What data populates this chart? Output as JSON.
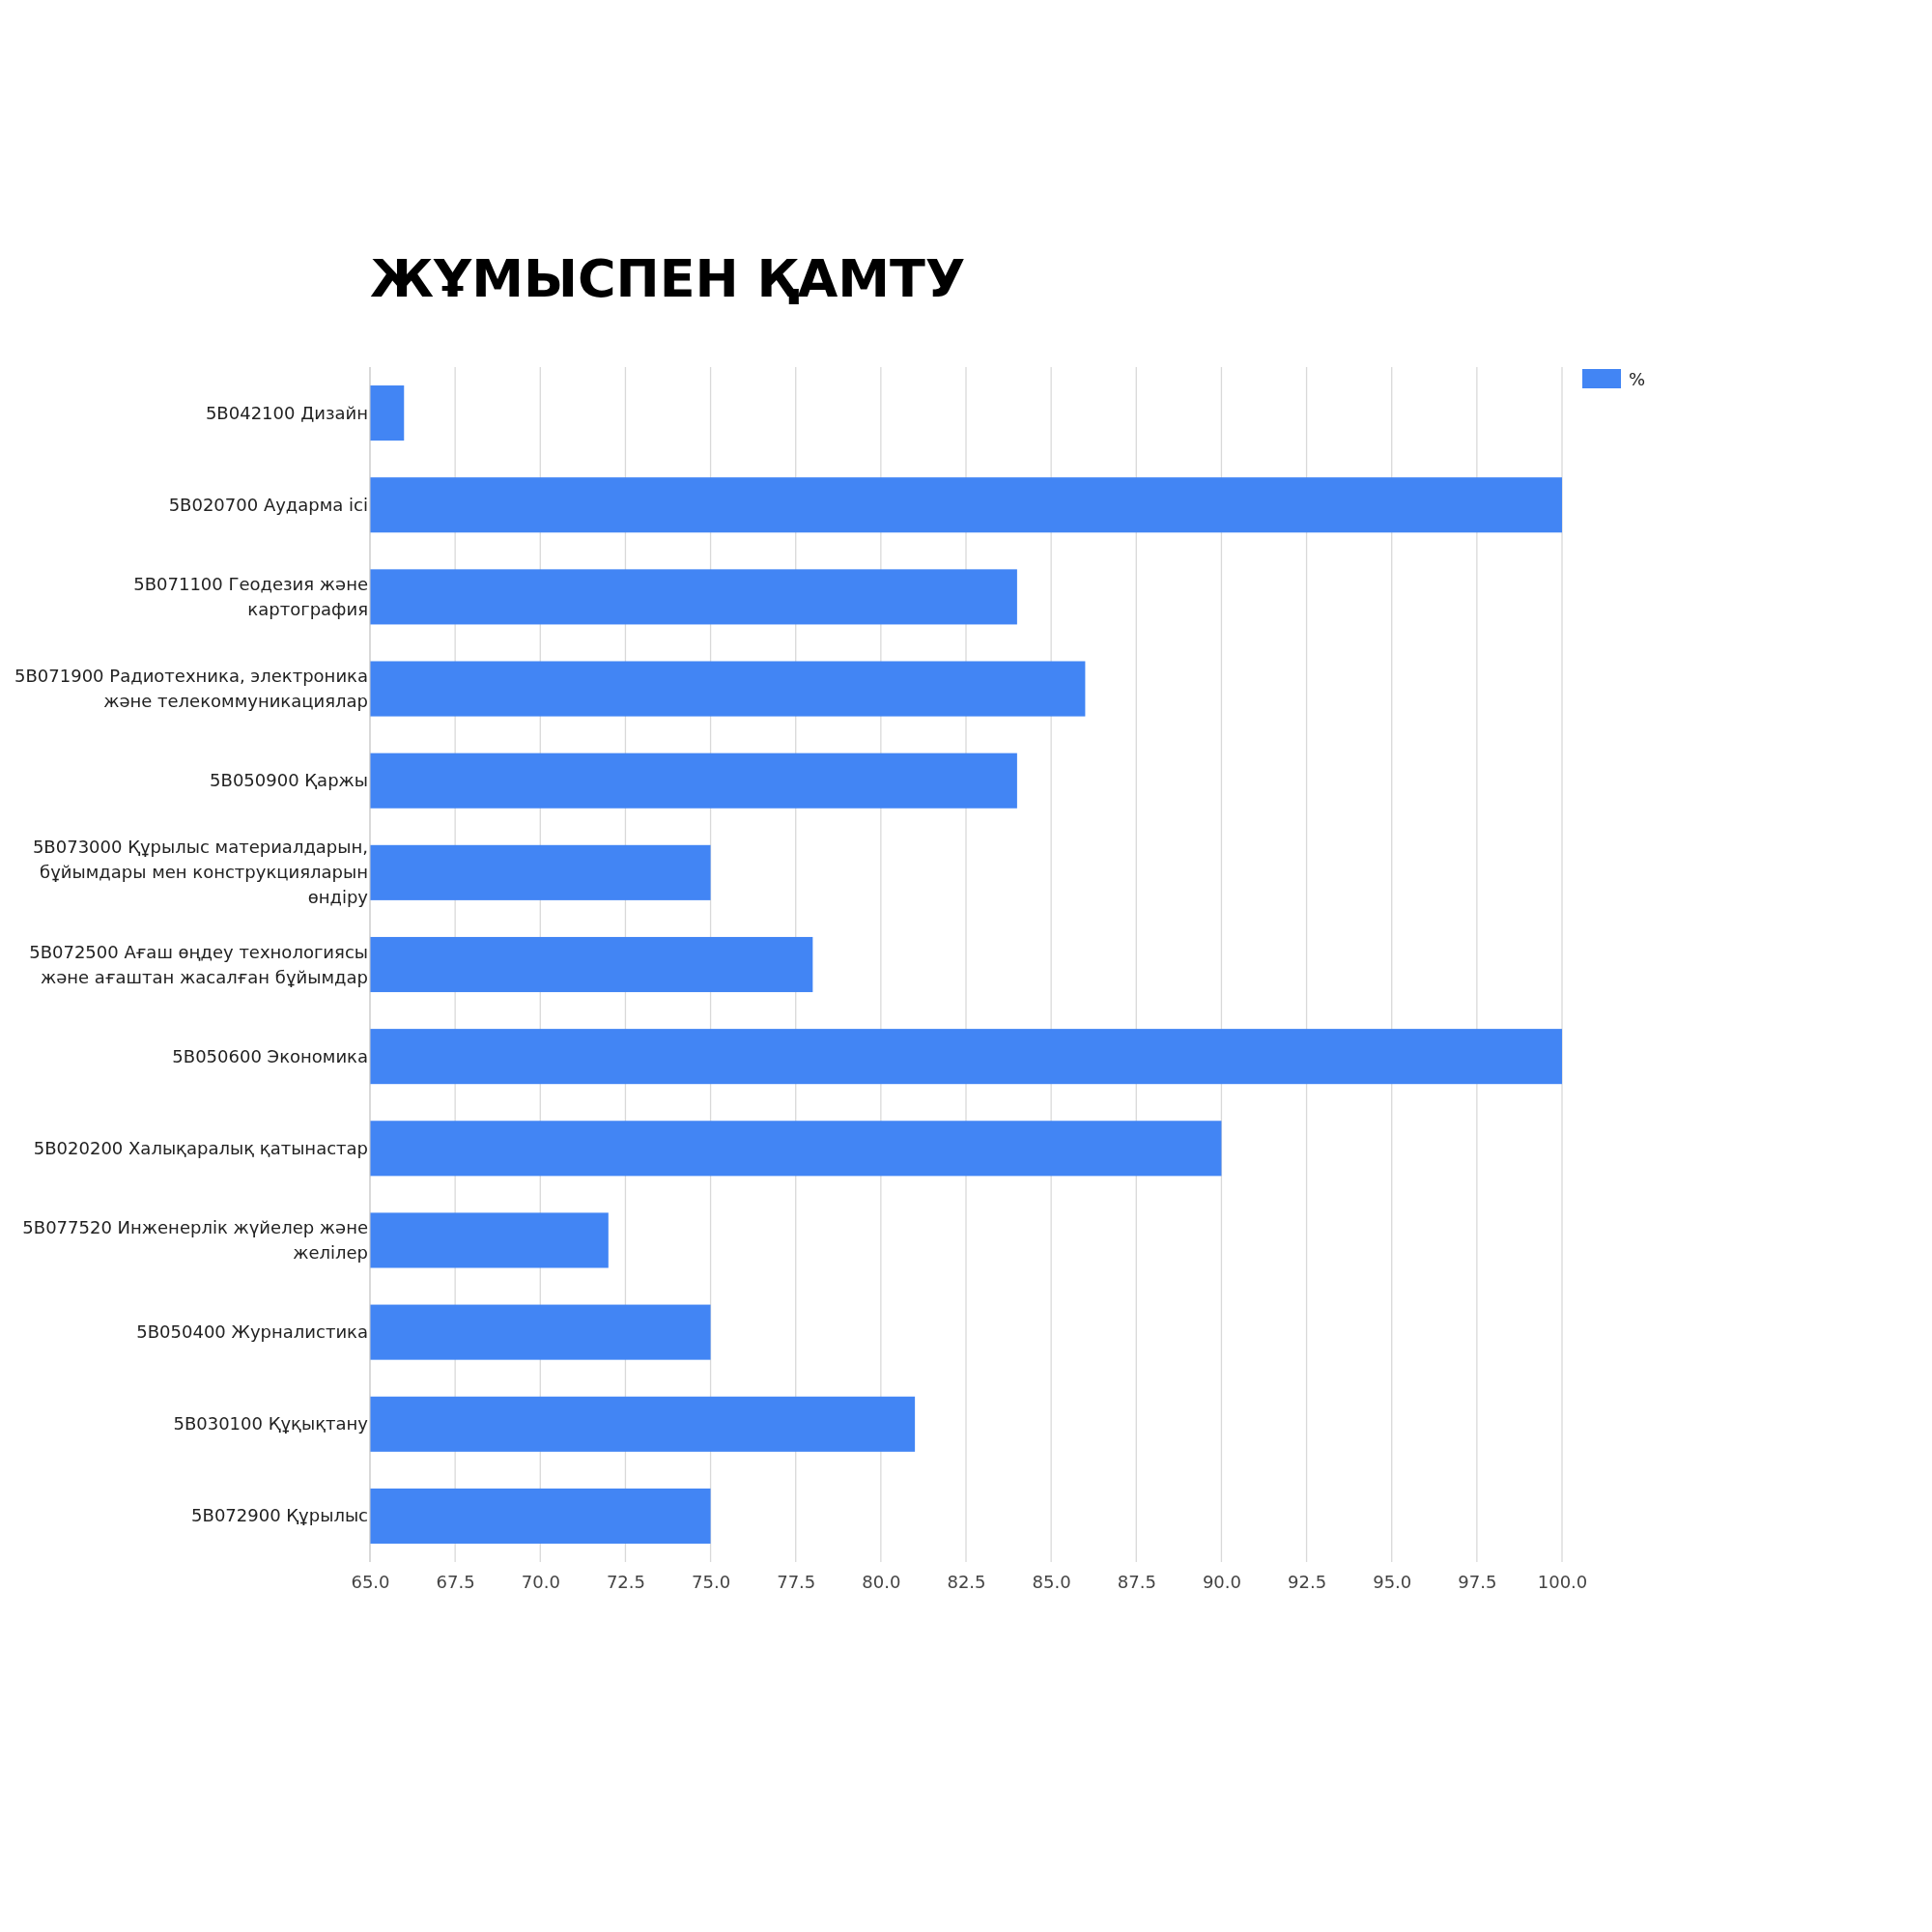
{
  "chart_data": {
    "type": "bar",
    "orientation": "horizontal",
    "title": "ЖҰМЫСПЕН ҚАМТУ",
    "categories": [
      "5B042100 Дизайн",
      "5B020700 Аударма ісі",
      "5B071100  Геодезия және\nкартография",
      "5B071900 Радиотехника, электроника\nжәне телекоммуникациялар",
      "5B050900 Қаржы",
      "5B073000 Құрылыс материалдарын,\nбұйымдары мен конструкцияларын\nөндіру",
      "5B072500 Ағаш өңдеу технологиясы\nжәне ағаштан жасалған бұйымдар",
      "5B050600 Экономика",
      "5B020200 Халықаралық қатынастар",
      "5B077520 Инженерлік жүйелер және\nжелілер",
      "5B050400 Журналистика",
      "5B030100 Құқықтану",
      "5B072900 Құрылыс"
    ],
    "series": [
      {
        "name": "%",
        "color": "#4285f4",
        "values": [
          66,
          100,
          84,
          86,
          84,
          75,
          78,
          100,
          90,
          72,
          75,
          81,
          75
        ]
      }
    ],
    "xlim": [
      65,
      100
    ],
    "xticks": [
      {
        "value": 65,
        "label": "65.0"
      },
      {
        "value": 67.5,
        "label": "67.5"
      },
      {
        "value": 70,
        "label": "70.0"
      },
      {
        "value": 72.5,
        "label": "72.5"
      },
      {
        "value": 75,
        "label": "75.0"
      },
      {
        "value": 77.5,
        "label": "77.5"
      },
      {
        "value": 80,
        "label": "80.0"
      },
      {
        "value": 82.5,
        "label": "82.5"
      },
      {
        "value": 85,
        "label": "85.0"
      },
      {
        "value": 87.5,
        "label": "87.5"
      },
      {
        "value": 90,
        "label": "90.0"
      },
      {
        "value": 92.5,
        "label": "92.5"
      },
      {
        "value": 95,
        "label": "95.0"
      },
      {
        "value": 97.5,
        "label": "97.5"
      },
      {
        "value": 100,
        "label": "100.0"
      }
    ],
    "grid": "x",
    "legend": "top right"
  }
}
